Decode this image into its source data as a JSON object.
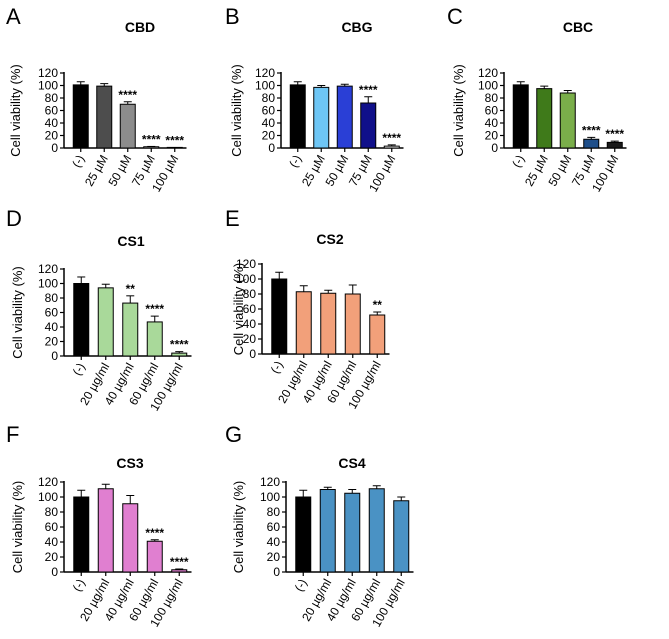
{
  "chart_data": [
    {
      "type": "bar",
      "panel": "A",
      "title": "CBD",
      "ylabel": "Cell viability (%)",
      "xlabel": "",
      "ylim": [
        0,
        120
      ],
      "yticks": [
        0,
        20,
        40,
        60,
        80,
        100,
        120
      ],
      "categories": [
        "(-)",
        "25 µM",
        "50 µM",
        "75 µM",
        "100 µM"
      ],
      "values": [
        101,
        99,
        70,
        2,
        0.5
      ],
      "errors": [
        5,
        4,
        4,
        0.5,
        0.3
      ],
      "colors": [
        "#000000",
        "#4d4d4d",
        "#8c8c8c",
        "#ffffff",
        "#ffffff"
      ],
      "significance": [
        "",
        "",
        "****",
        "****",
        "****"
      ]
    },
    {
      "type": "bar",
      "panel": "B",
      "title": "CBG",
      "ylabel": "Cell viability (%)",
      "xlabel": "",
      "ylim": [
        0,
        120
      ],
      "yticks": [
        0,
        20,
        40,
        60,
        80,
        100,
        120
      ],
      "categories": [
        "(-)",
        "25 µM",
        "50 µM",
        "75 µM",
        "100 µM"
      ],
      "values": [
        101,
        97,
        99,
        72,
        3
      ],
      "errors": [
        5,
        3,
        3,
        10,
        2
      ],
      "colors": [
        "#000000",
        "#6ec6f5",
        "#2a3fd6",
        "#10108a",
        "#ffffff"
      ],
      "significance": [
        "",
        "",
        "",
        "****",
        "****"
      ]
    },
    {
      "type": "bar",
      "panel": "C",
      "title": "CBC",
      "ylabel": "Cell viability (%)",
      "xlabel": "",
      "ylim": [
        0,
        120
      ],
      "yticks": [
        0,
        20,
        40,
        60,
        80,
        100,
        120
      ],
      "categories": [
        "(-)",
        "25 µM",
        "50 µM",
        "75 µM",
        "100 µM"
      ],
      "values": [
        101,
        95,
        88,
        14,
        9
      ],
      "errors": [
        5,
        4,
        4,
        3,
        2
      ],
      "colors": [
        "#000000",
        "#3f7a1a",
        "#7aae4a",
        "#1f4f8a",
        "#1a1a1a"
      ],
      "significance": [
        "",
        "",
        "",
        "****",
        "****"
      ]
    },
    {
      "type": "bar",
      "panel": "D",
      "title": "CS1",
      "ylabel": "Cell viability (%)",
      "xlabel": "",
      "ylim": [
        0,
        120
      ],
      "yticks": [
        0,
        20,
        40,
        60,
        80,
        100,
        120
      ],
      "categories": [
        "(-)",
        "20 µg/ml",
        "40 µg/ml",
        "60 µg/ml",
        "100 µg/ml"
      ],
      "values": [
        100,
        94,
        73,
        47,
        4
      ],
      "errors": [
        9,
        5,
        10,
        8,
        2
      ],
      "colors": [
        "#000000",
        "#a9d99a",
        "#a9d99a",
        "#a9d99a",
        "#a9d99a"
      ],
      "significance": [
        "",
        "",
        "**",
        "****",
        "****"
      ]
    },
    {
      "type": "bar",
      "panel": "E",
      "title": "CS2",
      "ylabel": "Cell viability (%)",
      "xlabel": "",
      "ylim": [
        0,
        120
      ],
      "yticks": [
        0,
        20,
        40,
        60,
        80,
        100,
        120
      ],
      "categories": [
        "(-)",
        "20 µg/ml",
        "40 µg/ml",
        "60 µg/ml",
        "100 µg/ml"
      ],
      "values": [
        100,
        83,
        81,
        80,
        52
      ],
      "errors": [
        9,
        8,
        4,
        12,
        4
      ],
      "colors": [
        "#000000",
        "#f2a07a",
        "#f2a07a",
        "#f2a07a",
        "#f2a07a"
      ],
      "significance": [
        "",
        "",
        "",
        "",
        "**"
      ]
    },
    {
      "type": "bar",
      "panel": "F",
      "title": "CS3",
      "ylabel": "Cell viability (%)",
      "xlabel": "",
      "ylim": [
        0,
        120
      ],
      "yticks": [
        0,
        20,
        40,
        60,
        80,
        100,
        120
      ],
      "categories": [
        "(-)",
        "20 µg/ml",
        "40 µg/ml",
        "60 µg/ml",
        "100 µg/ml"
      ],
      "values": [
        100,
        111,
        91,
        41,
        3
      ],
      "errors": [
        9,
        6,
        11,
        2,
        1
      ],
      "colors": [
        "#000000",
        "#e07fd0",
        "#e07fd0",
        "#e07fd0",
        "#e07fd0"
      ],
      "significance": [
        "",
        "",
        "",
        "****",
        "****"
      ]
    },
    {
      "type": "bar",
      "panel": "G",
      "title": "CS4",
      "ylabel": "Cell viability (%)",
      "xlabel": "",
      "ylim": [
        0,
        120
      ],
      "yticks": [
        0,
        20,
        40,
        60,
        80,
        100,
        120
      ],
      "categories": [
        "(-)",
        "20 µg/ml",
        "40 µg/ml",
        "60 µg/ml",
        "100 µg/ml"
      ],
      "values": [
        100,
        110,
        105,
        111,
        95
      ],
      "errors": [
        9,
        3,
        5,
        4,
        5
      ],
      "colors": [
        "#000000",
        "#4a92c4",
        "#4a92c4",
        "#4a92c4",
        "#4a92c4"
      ],
      "significance": [
        "",
        "",
        "",
        "",
        ""
      ]
    }
  ]
}
